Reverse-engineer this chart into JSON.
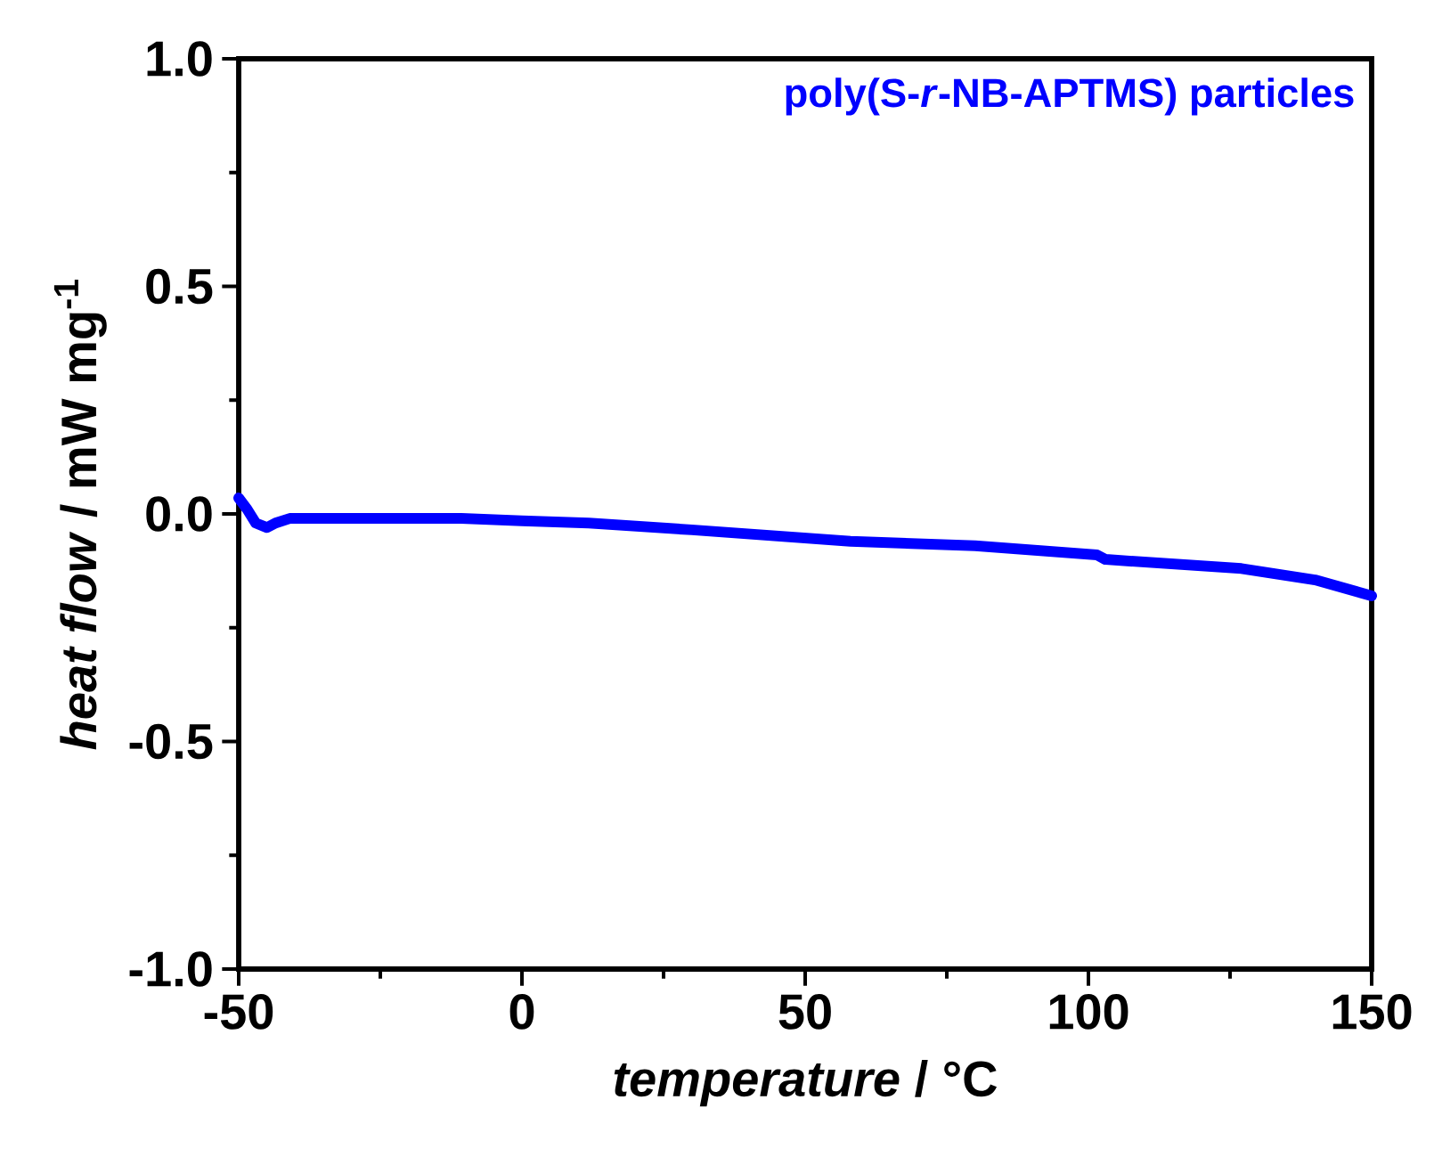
{
  "chart_data": {
    "type": "line",
    "xlabel": "*temperature* / °C",
    "ylabel": "*heat flow* / mW mg$^{-1}$",
    "series": [
      {
        "name": "poly(S-*r*-NB-APTMS) particles",
        "color": "#0000ff",
        "x": [
          -50,
          -48.5,
          -47,
          -45,
          -43.5,
          -41,
          -35,
          -25,
          -10.7,
          0,
          11.8,
          30,
          58,
          80,
          101.5,
          103,
          127,
          140,
          150
        ],
        "values": [
          0.035,
          0.01,
          -0.02,
          -0.03,
          -0.02,
          -0.01,
          -0.01,
          -0.01,
          -0.01,
          -0.015,
          -0.02,
          -0.035,
          -0.06,
          -0.07,
          -0.09,
          -0.1,
          -0.12,
          -0.145,
          -0.18
        ]
      }
    ],
    "xlim": [
      -50,
      150
    ],
    "ylim": [
      -1.0,
      1.0
    ],
    "xticks": [
      -50,
      0,
      50,
      100,
      150
    ],
    "yticks": [
      {
        "value": -1.0,
        "label": "-1.0"
      },
      {
        "value": -0.5,
        "label": "-0.5"
      },
      {
        "value": 0.0,
        "label": "0.0"
      },
      {
        "value": 0.5,
        "label": "0.5"
      },
      {
        "value": 1.0,
        "label": "1.0"
      }
    ],
    "legend": "top right",
    "grid": false,
    "marker": "none",
    "line_style": "solid"
  }
}
